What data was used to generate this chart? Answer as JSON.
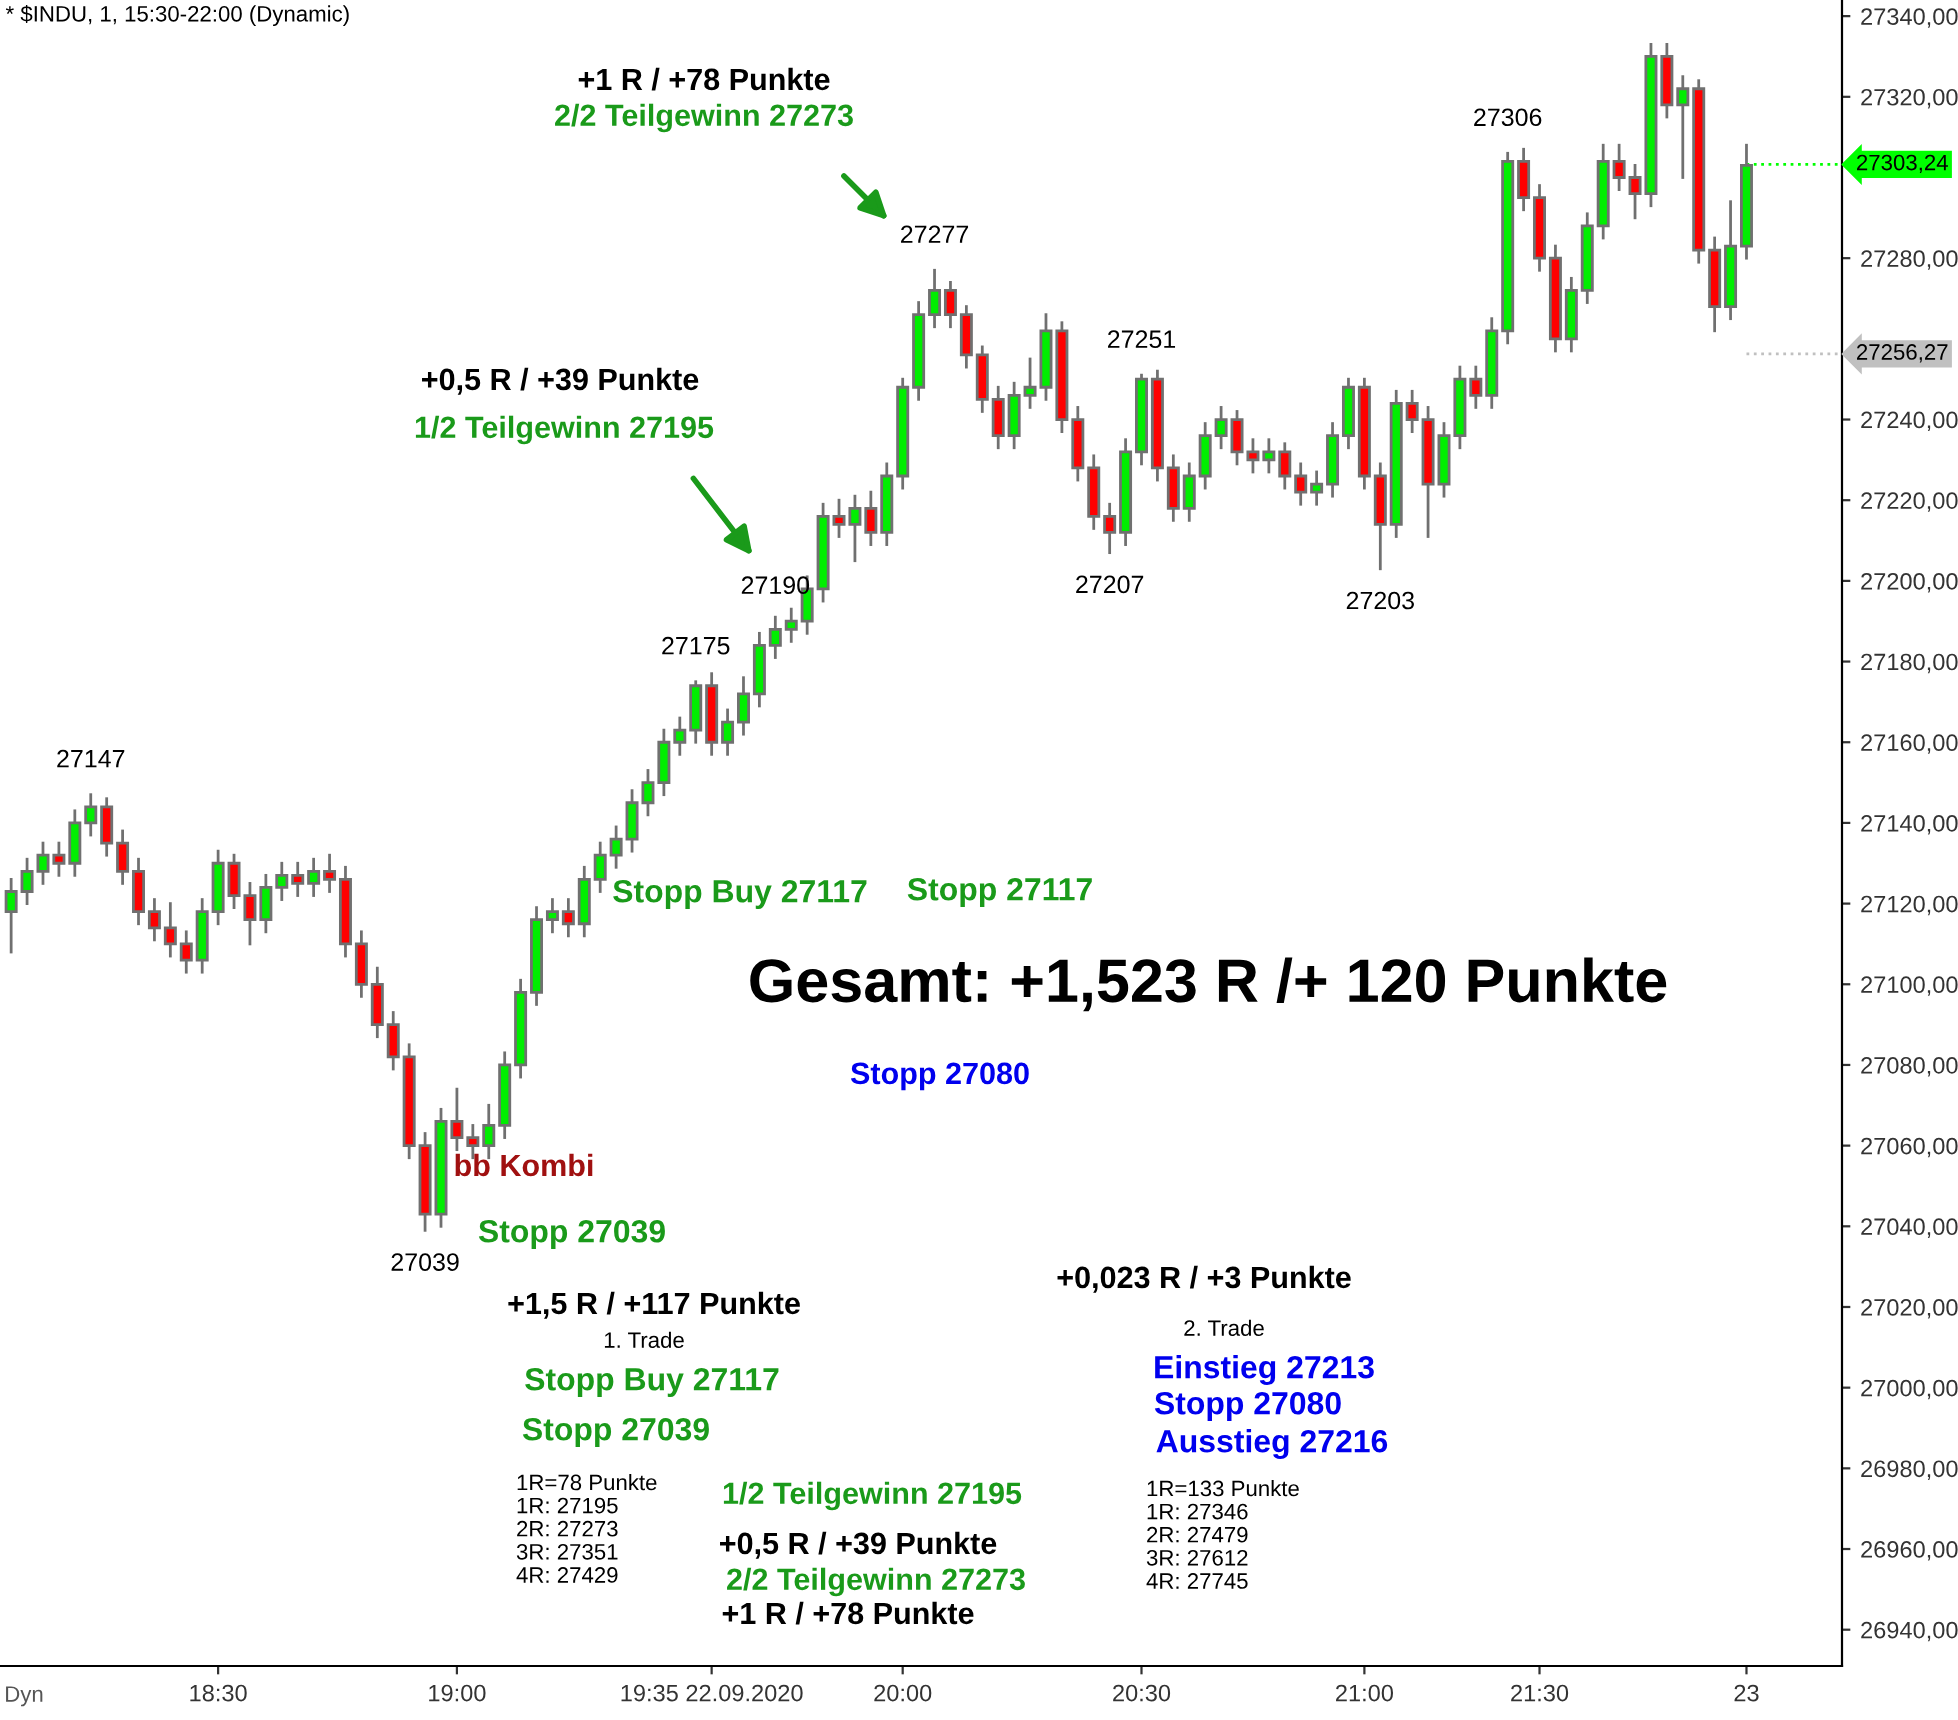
{
  "chart_data": {
    "type": "candlestick",
    "title": "* $INDU, 1, 15:30-22:00 (Dynamic)",
    "categories": [
      null,
      null,
      null,
      null,
      null,
      null,
      null,
      null,
      null,
      null,
      null,
      null,
      null,
      "18:30",
      null,
      null,
      null,
      null,
      null,
      null,
      null,
      null,
      null,
      null,
      null,
      null,
      null,
      null,
      "19:00",
      null,
      null,
      null,
      null,
      null,
      null,
      null,
      null,
      null,
      null,
      null,
      null,
      null,
      null,
      null,
      "19:35 22.09.2020",
      null,
      null,
      null,
      null,
      null,
      null,
      null,
      null,
      null,
      null,
      null,
      "20:00",
      null,
      null,
      null,
      null,
      null,
      null,
      null,
      null,
      null,
      null,
      null,
      null,
      null,
      null,
      "20:30",
      null,
      null,
      null,
      null,
      null,
      null,
      null,
      null,
      null,
      null,
      null,
      null,
      null,
      "21:00",
      null,
      null,
      null,
      null,
      null,
      null,
      null,
      null,
      null,
      null,
      "21:30",
      null,
      null,
      null,
      null,
      null,
      null,
      null,
      null,
      null,
      null,
      null,
      null,
      "23"
    ],
    "ohlc": [
      [
        27118,
        27126,
        27108,
        27123
      ],
      [
        27123,
        27131,
        27120,
        27128
      ],
      [
        27128,
        27135,
        27125,
        27132
      ],
      [
        27132,
        27135,
        27127,
        27130
      ],
      [
        27130,
        27143,
        27127,
        27140
      ],
      [
        27140,
        27147,
        27137,
        27144
      ],
      [
        27144,
        27146,
        27132,
        27135
      ],
      [
        27135,
        27138,
        27125,
        27128
      ],
      [
        27128,
        27131,
        27115,
        27118
      ],
      [
        27118,
        27121,
        27111,
        27114
      ],
      [
        27114,
        27120,
        27107,
        27110
      ],
      [
        27110,
        27113,
        27103,
        27106
      ],
      [
        27106,
        27121,
        27103,
        27118
      ],
      [
        27118,
        27133,
        27115,
        27130
      ],
      [
        27130,
        27132,
        27119,
        27122
      ],
      [
        27122,
        27125,
        27110,
        27116
      ],
      [
        27116,
        27127,
        27113,
        27124
      ],
      [
        27124,
        27130,
        27121,
        27127
      ],
      [
        27127,
        27130,
        27122,
        27125
      ],
      [
        27125,
        27131,
        27122,
        27128
      ],
      [
        27128,
        27132,
        27123,
        27126
      ],
      [
        27126,
        27129,
        27107,
        27110
      ],
      [
        27110,
        27113,
        27097,
        27100
      ],
      [
        27100,
        27104,
        27087,
        27090
      ],
      [
        27090,
        27093,
        27079,
        27082
      ],
      [
        27082,
        27085,
        27057,
        27060
      ],
      [
        27060,
        27063,
        27039,
        27043
      ],
      [
        27043,
        27069,
        27040,
        27066
      ],
      [
        27066,
        27074,
        27059,
        27062
      ],
      [
        27062,
        27065,
        27057,
        27060
      ],
      [
        27060,
        27070,
        27057,
        27065
      ],
      [
        27065,
        27083,
        27062,
        27080
      ],
      [
        27080,
        27101,
        27077,
        27098
      ],
      [
        27098,
        27119,
        27095,
        27116
      ],
      [
        27116,
        27121,
        27113,
        27118
      ],
      [
        27118,
        27121,
        27112,
        27115
      ],
      [
        27115,
        27129,
        27112,
        27126
      ],
      [
        27126,
        27135,
        27123,
        27132
      ],
      [
        27132,
        27139,
        27129,
        27136
      ],
      [
        27136,
        27148,
        27133,
        27145
      ],
      [
        27145,
        27153,
        27142,
        27150
      ],
      [
        27150,
        27163,
        27147,
        27160
      ],
      [
        27160,
        27166,
        27157,
        27163
      ],
      [
        27163,
        27175,
        27160,
        27174
      ],
      [
        27174,
        27177,
        27157,
        27160
      ],
      [
        27160,
        27168,
        27157,
        27165
      ],
      [
        27165,
        27176,
        27162,
        27172
      ],
      [
        27172,
        27187,
        27169,
        27184
      ],
      [
        27184,
        27191,
        27181,
        27188
      ],
      [
        27188,
        27193,
        27185,
        27190
      ],
      [
        27190,
        27201,
        27187,
        27198
      ],
      [
        27198,
        27219,
        27195,
        27216
      ],
      [
        27216,
        27220,
        27211,
        27214
      ],
      [
        27214,
        27221,
        27205,
        27218
      ],
      [
        27218,
        27222,
        27209,
        27212
      ],
      [
        27212,
        27229,
        27209,
        27226
      ],
      [
        27226,
        27250,
        27223,
        27248
      ],
      [
        27248,
        27269,
        27245,
        27266
      ],
      [
        27266,
        27277,
        27263,
        27272
      ],
      [
        27272,
        27274,
        27263,
        27266
      ],
      [
        27266,
        27268,
        27253,
        27256
      ],
      [
        27256,
        27258,
        27242,
        27245
      ],
      [
        27245,
        27248,
        27233,
        27236
      ],
      [
        27236,
        27249,
        27233,
        27246
      ],
      [
        27246,
        27255,
        27243,
        27248
      ],
      [
        27248,
        27266,
        27245,
        27262
      ],
      [
        27262,
        27264,
        27237,
        27240
      ],
      [
        27240,
        27243,
        27225,
        27228
      ],
      [
        27228,
        27231,
        27213,
        27216
      ],
      [
        27216,
        27219,
        27207,
        27212
      ],
      [
        27212,
        27235,
        27209,
        27232
      ],
      [
        27232,
        27251,
        27229,
        27250
      ],
      [
        27250,
        27252,
        27225,
        27228
      ],
      [
        27228,
        27231,
        27215,
        27218
      ],
      [
        27218,
        27229,
        27215,
        27226
      ],
      [
        27226,
        27239,
        27223,
        27236
      ],
      [
        27236,
        27243,
        27233,
        27240
      ],
      [
        27240,
        27242,
        27229,
        27232
      ],
      [
        27232,
        27235,
        27227,
        27230
      ],
      [
        27230,
        27235,
        27227,
        27232
      ],
      [
        27232,
        27234,
        27223,
        27226
      ],
      [
        27226,
        27229,
        27219,
        27222
      ],
      [
        27222,
        27227,
        27219,
        27224
      ],
      [
        27224,
        27239,
        27221,
        27236
      ],
      [
        27236,
        27250,
        27233,
        27248
      ],
      [
        27248,
        27250,
        27223,
        27226
      ],
      [
        27226,
        27229,
        27203,
        27214
      ],
      [
        27214,
        27247,
        27211,
        27244
      ],
      [
        27244,
        27247,
        27237,
        27240
      ],
      [
        27240,
        27243,
        27211,
        27224
      ],
      [
        27224,
        27239,
        27221,
        27236
      ],
      [
        27236,
        27253,
        27233,
        27250
      ],
      [
        27250,
        27253,
        27243,
        27246
      ],
      [
        27246,
        27265,
        27243,
        27262
      ],
      [
        27262,
        27306,
        27259,
        27304
      ],
      [
        27304,
        27307,
        27292,
        27295
      ],
      [
        27295,
        27298,
        27277,
        27280
      ],
      [
        27280,
        27283,
        27257,
        27260
      ],
      [
        27260,
        27275,
        27257,
        27272
      ],
      [
        27272,
        27291,
        27269,
        27288
      ],
      [
        27288,
        27308,
        27285,
        27304
      ],
      [
        27304,
        27308,
        27297,
        27300
      ],
      [
        27300,
        27303,
        27290,
        27296
      ],
      [
        27296,
        27333,
        27293,
        27330
      ],
      [
        27330,
        27333,
        27315,
        27318
      ],
      [
        27318,
        27325,
        27300,
        27322
      ],
      [
        27322,
        27324,
        27279,
        27282
      ],
      [
        27282,
        27285,
        27262,
        27268
      ],
      [
        27268,
        27294,
        27265,
        27283
      ],
      [
        27283,
        27308,
        27280,
        27303
      ]
    ],
    "ylim": [
      26931,
      27344
    ],
    "yticks": [
      {
        "value": 26940,
        "label": "26940,00"
      },
      {
        "value": 26960,
        "label": "26960,00"
      },
      {
        "value": 26980,
        "label": "26980,00"
      },
      {
        "value": 27000,
        "label": "27000,00"
      },
      {
        "value": 27020,
        "label": "27020,00"
      },
      {
        "value": 27040,
        "label": "27040,00"
      },
      {
        "value": 27060,
        "label": "27060,00"
      },
      {
        "value": 27080,
        "label": "27080,00"
      },
      {
        "value": 27100,
        "label": "27100,00"
      },
      {
        "value": 27120,
        "label": "27120,00"
      },
      {
        "value": 27140,
        "label": "27140,00"
      },
      {
        "value": 27160,
        "label": "27160,00"
      },
      {
        "value": 27180,
        "label": "27180,00"
      },
      {
        "value": 27200,
        "label": "27200,00"
      },
      {
        "value": 27220,
        "label": "27220,00"
      },
      {
        "value": 27240,
        "label": "27240,00"
      },
      {
        "value": 27280,
        "label": "27280,00"
      },
      {
        "value": 27320,
        "label": "27320,00"
      },
      {
        "value": 27340,
        "label": "27340,00"
      }
    ],
    "grid": false,
    "ref_lines": [
      {
        "axis": "y",
        "value": 27303.24,
        "label": "27303,24",
        "color": "#00ff00"
      },
      {
        "axis": "y",
        "value": 27256.27,
        "label": "27256,27",
        "color": "#c0c0c0"
      }
    ],
    "annotations": [
      {
        "text": "27147",
        "y": 27147
      },
      {
        "text": "27039",
        "y": 27039
      },
      {
        "text": "27175",
        "y": 27175
      },
      {
        "text": "27190",
        "y": 27190
      },
      {
        "text": "27277",
        "y": 27277
      },
      {
        "text": "27251",
        "y": 27251
      },
      {
        "text": "27207",
        "y": 27207
      },
      {
        "text": "27203",
        "y": 27203
      },
      {
        "text": "27306",
        "y": 27306
      },
      "+1 R / +78 Punkte",
      "2/2 Teilgewinn 27273",
      "+0,5 R / +39 Punkte",
      "1/2 Teilgewinn 27195",
      "Stopp Buy 27117",
      "Stopp 27117",
      "Gesamt: +1,523 R /+ 120 Punkte",
      "Stopp 27080",
      "bb Kombi",
      "Stopp 27039",
      "+0,023 R / +3 Punkte",
      "+1,5 R / +117 Punkte",
      "2. Trade",
      "1. Trade",
      "Einstieg 27213",
      "Stopp Buy 27117",
      "Stopp 27080",
      "Ausstieg 27216",
      "Stopp 27039",
      "1R=78 Punkte\n1R: 27195\n2R: 27273\n3R: 27351\n4R: 27429",
      "1/2 Teilgewinn 27195",
      "1R=133 Punkte\n1R: 27346\n2R: 27479\n3R: 27612\n4R: 27745",
      "+0,5 R / +39 Punkte",
      "2/2 Teilgewinn 27273",
      "+1 R / +78 Punkte",
      "Dyn"
    ]
  }
}
